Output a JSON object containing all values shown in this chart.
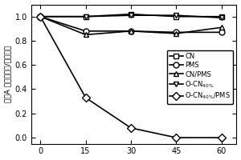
{
  "x": [
    0,
    15,
    30,
    45,
    60
  ],
  "series": {
    "CN": [
      1.0,
      1.0,
      1.02,
      1.0,
      1.0
    ],
    "PMS": [
      1.0,
      0.88,
      0.88,
      0.87,
      0.87
    ],
    "CN/PMS": [
      1.0,
      0.85,
      0.88,
      0.86,
      0.91
    ],
    "O-CN_40%": [
      1.0,
      1.0,
      1.01,
      1.01,
      0.99
    ],
    "O-CN_40%/PMS": [
      1.0,
      0.33,
      0.08,
      0.0,
      0.0
    ]
  },
  "markers": {
    "CN": "s",
    "PMS": "o",
    "CN/PMS": "^",
    "O-CN_40%": "v",
    "O-CN_40%/PMS": "D"
  },
  "ylabel": "双酚A 反应时浓度/初始浓度",
  "xlim": [
    -3,
    65
  ],
  "ylim": [
    -0.05,
    1.1
  ],
  "xticks": [
    0,
    15,
    30,
    45,
    60
  ],
  "yticks": [
    0.0,
    0.2,
    0.4,
    0.6,
    0.8,
    1.0
  ],
  "legend_labels": {
    "CN": "CN",
    "PMS": "PMS",
    "CN/PMS": "CN/PMS",
    "O-CN_40%": "O-CN$_{40\\%}$",
    "O-CN_40%/PMS": "O-CN$_{40\\%}$/PMS"
  },
  "color": "black",
  "linewidth": 1.2,
  "markersize": 5,
  "figsize": [
    3.0,
    2.0
  ],
  "dpi": 100
}
